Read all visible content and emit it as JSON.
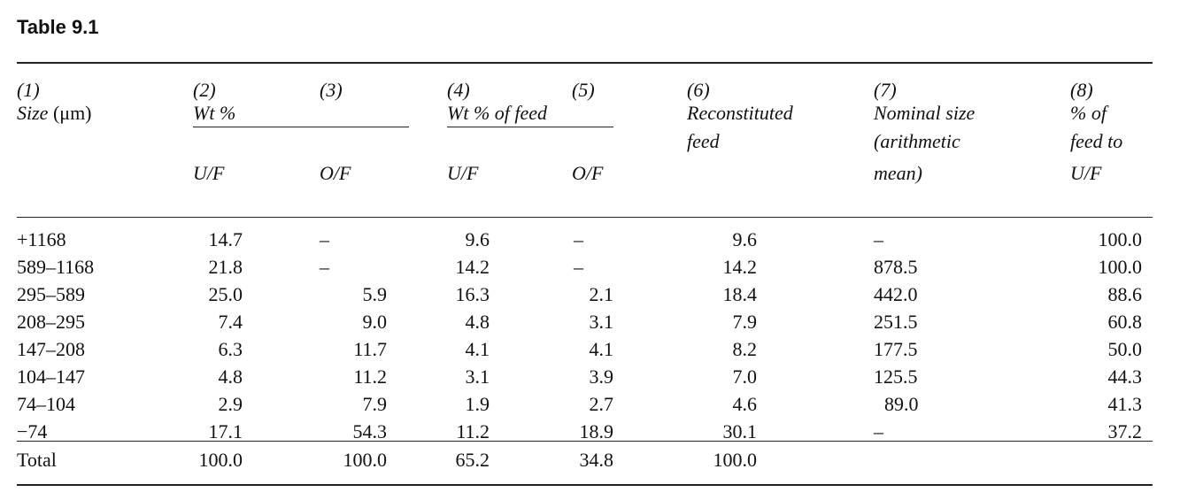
{
  "caption": "Table 9.1",
  "header": {
    "c1_num": "(1)",
    "c1_label": "Size",
    "c1_unit": "(μm)",
    "c2_num": "(2)",
    "c2_label": "Wt %",
    "c3_num": "(3)",
    "c4_num": "(4)",
    "c5_num": "(5)",
    "c45_label": "Wt % of feed",
    "c6_num": "(6)",
    "c6_line1": "Reconstituted",
    "c6_line2": "feed",
    "c7_num": "(7)",
    "c7_line1": "Nominal size",
    "c7_line2": "(arithmetic",
    "c7_line3": "mean)",
    "c8_num": "(8)",
    "c8_line1": "% of",
    "c8_line2": "feed to",
    "c8_line3": "U/F",
    "sub_uf2": "U/F",
    "sub_of3": "O/F",
    "sub_uf4": "U/F",
    "sub_of5": "O/F"
  },
  "rows": [
    {
      "size": "+1168",
      "uf": "14.7",
      "of": "–",
      "uf_feed": "9.6",
      "of_feed": "–",
      "feed": "9.6",
      "nominal": "–",
      "pct": "100.0"
    },
    {
      "size": "589–1168",
      "uf": "21.8",
      "of": "–",
      "uf_feed": "14.2",
      "of_feed": "–",
      "feed": "14.2",
      "nominal": "878.5",
      "pct": "100.0"
    },
    {
      "size": "295–589",
      "uf": "25.0",
      "of": "5.9",
      "uf_feed": "16.3",
      "of_feed": "2.1",
      "feed": "18.4",
      "nominal": "442.0",
      "pct": "88.6"
    },
    {
      "size": "208–295",
      "uf": "7.4",
      "of": "9.0",
      "uf_feed": "4.8",
      "of_feed": "3.1",
      "feed": "7.9",
      "nominal": "251.5",
      "pct": "60.8"
    },
    {
      "size": "147–208",
      "uf": "6.3",
      "of": "11.7",
      "uf_feed": "4.1",
      "of_feed": "4.1",
      "feed": "8.2",
      "nominal": "177.5",
      "pct": "50.0"
    },
    {
      "size": "104–147",
      "uf": "4.8",
      "of": "11.2",
      "uf_feed": "3.1",
      "of_feed": "3.9",
      "feed": "7.0",
      "nominal": "125.5",
      "pct": "44.3"
    },
    {
      "size": "74–104",
      "uf": "2.9",
      "of": "7.9",
      "uf_feed": "1.9",
      "of_feed": "2.7",
      "feed": "4.6",
      "nominal": "89.0",
      "pct": "41.3"
    },
    {
      "size": "−74",
      "uf": "17.1",
      "of": "54.3",
      "uf_feed": "11.2",
      "of_feed": "18.9",
      "feed": "30.1",
      "nominal": "–",
      "pct": "37.2"
    }
  ],
  "total": {
    "label": "Total",
    "uf": "100.0",
    "of": "100.0",
    "uf_feed": "65.2",
    "of_feed": "34.8",
    "feed": "100.0",
    "nominal": "",
    "pct": ""
  }
}
